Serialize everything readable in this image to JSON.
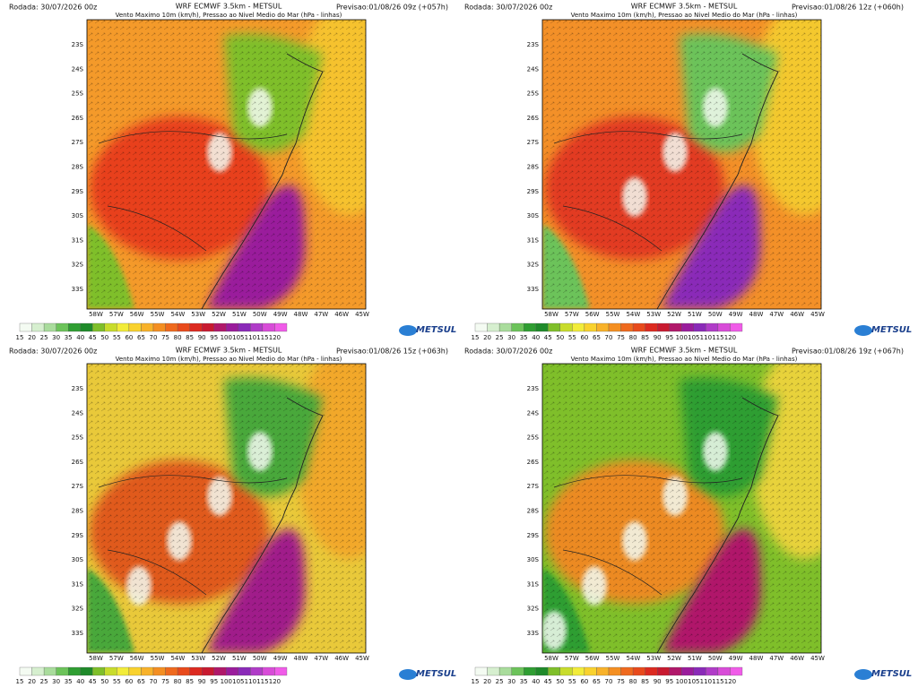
{
  "panels": [
    {
      "run": "Rodada: 30/07/2026 00z",
      "title": "WRF ECMWF 3.5km - METSUL",
      "subtitle": "Vento Maximo 10m (km/h), Pressao ao Nivel Medio do Mar (hPa - linhas)",
      "forecast": "Previsao:01/08/26 09z (+057h)",
      "logo": "METSUL"
    },
    {
      "run": "Rodada: 30/07/2026 00z",
      "title": "WRF ECMWF 3.5km - METSUL",
      "subtitle": "Vento Maximo 10m (km/h), Pressao ao Nivel Medio do Mar (hPa - linhas)",
      "forecast": "Previsao:01/08/26 12z (+060h)",
      "logo": "METSUL"
    },
    {
      "run": "Rodada: 30/07/2026 00z",
      "title": "WRF ECMWF 3.5km - METSUL",
      "subtitle": "Vento Maximo 10m (km/h), Pressao ao Nivel Medio do Mar (hPa - linhas)",
      "forecast": "Previsao:01/08/26 15z (+063h)",
      "logo": "METSUL"
    },
    {
      "run": "Rodada: 30/07/2026 00z",
      "title": "WRF ECMWF 3.5km - METSUL",
      "subtitle": "Vento Maximo 10m (km/h), Pressao ao Nivel Medio do Mar (hPa - linhas)",
      "forecast": "Previsao:01/08/26 19z (+067h)",
      "logo": "METSUL"
    }
  ],
  "lat_labels": [
    "23S",
    "24S",
    "25S",
    "26S",
    "27S",
    "28S",
    "29S",
    "30S",
    "31S",
    "32S",
    "33S"
  ],
  "lon_labels": [
    "58W",
    "57W",
    "56W",
    "55W",
    "54W",
    "53W",
    "52W",
    "51W",
    "50W",
    "49W",
    "48W",
    "47W",
    "46W",
    "45W"
  ],
  "colorbar_labels": [
    "15",
    "20",
    "25",
    "30",
    "35",
    "40",
    "45",
    "50",
    "55",
    "60",
    "65",
    "70",
    "75",
    "80",
    "85",
    "90",
    "95",
    "100",
    "105",
    "110",
    "115",
    "120"
  ],
  "colorbar_colors": [
    "#f4fbf2",
    "#d6efcf",
    "#a9dc9c",
    "#6cc35a",
    "#2f9e32",
    "#1f8a2a",
    "#7fbf2a",
    "#c8dc2c",
    "#f2ec3a",
    "#f9d22e",
    "#f8b22a",
    "#f48f22",
    "#ef6a1e",
    "#e84a1c",
    "#dc2a20",
    "#c81a30",
    "#b0186a",
    "#9a1c9c",
    "#8a2ab8",
    "#b03cc8",
    "#d84cd8",
    "#f05ce8"
  ]
}
